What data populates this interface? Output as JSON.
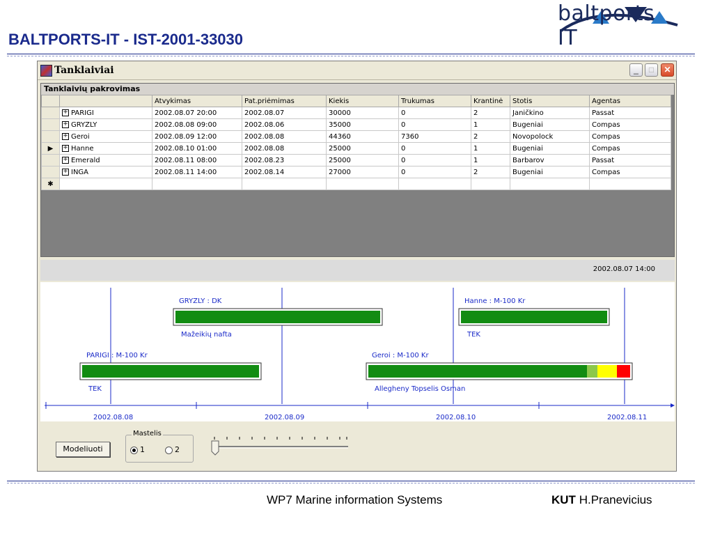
{
  "slide": {
    "title": "BALTPORTS-IT - IST-2001-33030",
    "logo_text": "baltports IT",
    "footer_center": "WP7 Marine information Systems",
    "footer_org": "KUT",
    "footer_author": "H.Pranevicius"
  },
  "window": {
    "title": "Tanklaiviai",
    "controls": {
      "minimize": "_",
      "maximize": "□",
      "close": "✕"
    }
  },
  "grid": {
    "caption": "Tanklaivių pakrovimas",
    "columns": [
      "",
      "Atvykimas",
      "Pat.priėmimas",
      "Kiekis",
      "Trukumas",
      "Krantinė",
      "Stotis",
      "Agentas"
    ],
    "rows": [
      {
        "name": "PARIGI",
        "atvykimas": "2002.08.07 20:00",
        "priemimas": "2002.08.07",
        "kiekis": "30000",
        "trukumas": "0",
        "krantine": "2",
        "stotis": "Janičkino",
        "agentas": "Passat"
      },
      {
        "name": "GRYZLY",
        "atvykimas": "2002.08.08 09:00",
        "priemimas": "2002.08.06",
        "kiekis": "35000",
        "trukumas": "0",
        "krantine": "1",
        "stotis": "Bugeniai",
        "agentas": "Compas"
      },
      {
        "name": "Geroi",
        "atvykimas": "2002.08.09 12:00",
        "priemimas": "2002.08.08",
        "kiekis": "44360",
        "trukumas": "7360",
        "krantine": "2",
        "stotis": "Novopolock",
        "agentas": "Compas"
      },
      {
        "name": "Hanne",
        "atvykimas": "2002.08.10 01:00",
        "priemimas": "2002.08.08",
        "kiekis": "25000",
        "trukumas": "0",
        "krantine": "1",
        "stotis": "Bugeniai",
        "agentas": "Compas"
      },
      {
        "name": "Emerald",
        "atvykimas": "2002.08.11 08:00",
        "priemimas": "2002.08.23",
        "kiekis": "25000",
        "trukumas": "0",
        "krantine": "1",
        "stotis": "Barbarov",
        "agentas": "Passat"
      },
      {
        "name": "INGA",
        "atvykimas": "2002.08.11 14:00",
        "priemimas": "2002.08.14",
        "kiekis": "27000",
        "trukumas": "0",
        "krantine": "2",
        "stotis": "Bugeniai",
        "agentas": "Compas"
      }
    ],
    "selected_row_index": 3,
    "new_row_marker": "✱",
    "current_marker": "▶",
    "expander": "+"
  },
  "timeline": {
    "current_time": "2002.08.07  14:00",
    "axis_labels": [
      "2002.08.08",
      "2002.08.09",
      "2002.08.10",
      "2002.08.11"
    ],
    "bars": [
      {
        "top_label": "GRYZLY : DK",
        "bottom_label": "Mažeikių nafta"
      },
      {
        "top_label": "Hanne : M-100 Kr",
        "bottom_label": "TEK"
      },
      {
        "top_label": "PARIGI : M-100 Kr",
        "bottom_label": "TEK"
      },
      {
        "top_label": "Geroi : M-100 Kr",
        "bottom_label": "Allegheny Topselis Osman"
      }
    ],
    "colors": {
      "green": "#128c12",
      "light_green": "#8cc84a",
      "yellow": "#ffff00",
      "red": "#ff0000",
      "line": "#1a2ac8"
    }
  },
  "controls": {
    "model_button": "Modeliuoti",
    "scale_group_label": "Mastelis",
    "scale_options": [
      "1",
      "2"
    ],
    "scale_selected": "1"
  }
}
